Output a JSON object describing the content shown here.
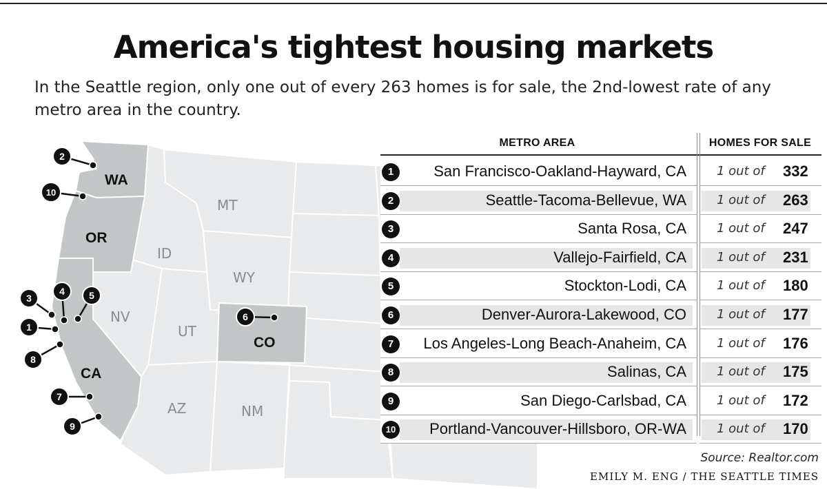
{
  "title": "America's tightest housing markets",
  "subtitle": "In the Seattle region, only one out of every 263 homes is for sale, the 2nd-lowest rate of any metro area in the country.",
  "map": {
    "highlighted_states": [
      "WA",
      "OR",
      "CA",
      "CO"
    ],
    "other_states": [
      "MT",
      "ID",
      "WY",
      "NV",
      "UT",
      "AZ",
      "NM"
    ],
    "markers": [
      "1",
      "2",
      "3",
      "4",
      "5",
      "6",
      "7",
      "8",
      "9",
      "10"
    ],
    "colors": {
      "highlight": "#c3c6c7",
      "base": "#e9eaeb",
      "marker": "#111111"
    }
  },
  "table": {
    "header_metro": "METRO AREA",
    "header_homes": "HOMES FOR SALE",
    "rows": [
      {
        "rank": "1",
        "metro": "San Francisco-Oakland-Hayward, CA",
        "prefix": "1 out of",
        "value": "332"
      },
      {
        "rank": "2",
        "metro": "Seattle-Tacoma-Bellevue, WA",
        "prefix": "1 out of",
        "value": "263"
      },
      {
        "rank": "3",
        "metro": "Santa Rosa, CA",
        "prefix": "1 out of",
        "value": "247"
      },
      {
        "rank": "4",
        "metro": "Vallejo-Fairfield, CA",
        "prefix": "1 out of",
        "value": "231"
      },
      {
        "rank": "5",
        "metro": "Stockton-Lodi, CA",
        "prefix": "1 out of",
        "value": "180"
      },
      {
        "rank": "6",
        "metro": "Denver-Aurora-Lakewood, CO",
        "prefix": "1 out of",
        "value": "177"
      },
      {
        "rank": "7",
        "metro": "Los Angeles-Long Beach-Anaheim, CA",
        "prefix": "1 out of",
        "value": "176"
      },
      {
        "rank": "8",
        "metro": "Salinas, CA",
        "prefix": "1 out of",
        "value": "175"
      },
      {
        "rank": "9",
        "metro": "San Diego-Carlsbad, CA",
        "prefix": "1 out of",
        "value": "172"
      },
      {
        "rank": "10",
        "metro": "Portland-Vancouver-Hillsboro, OR-WA",
        "prefix": "1 out of",
        "value": "170"
      }
    ]
  },
  "source": "Source: Realtor.com",
  "credit": "EMILY M. ENG / THE SEATTLE TIMES"
}
